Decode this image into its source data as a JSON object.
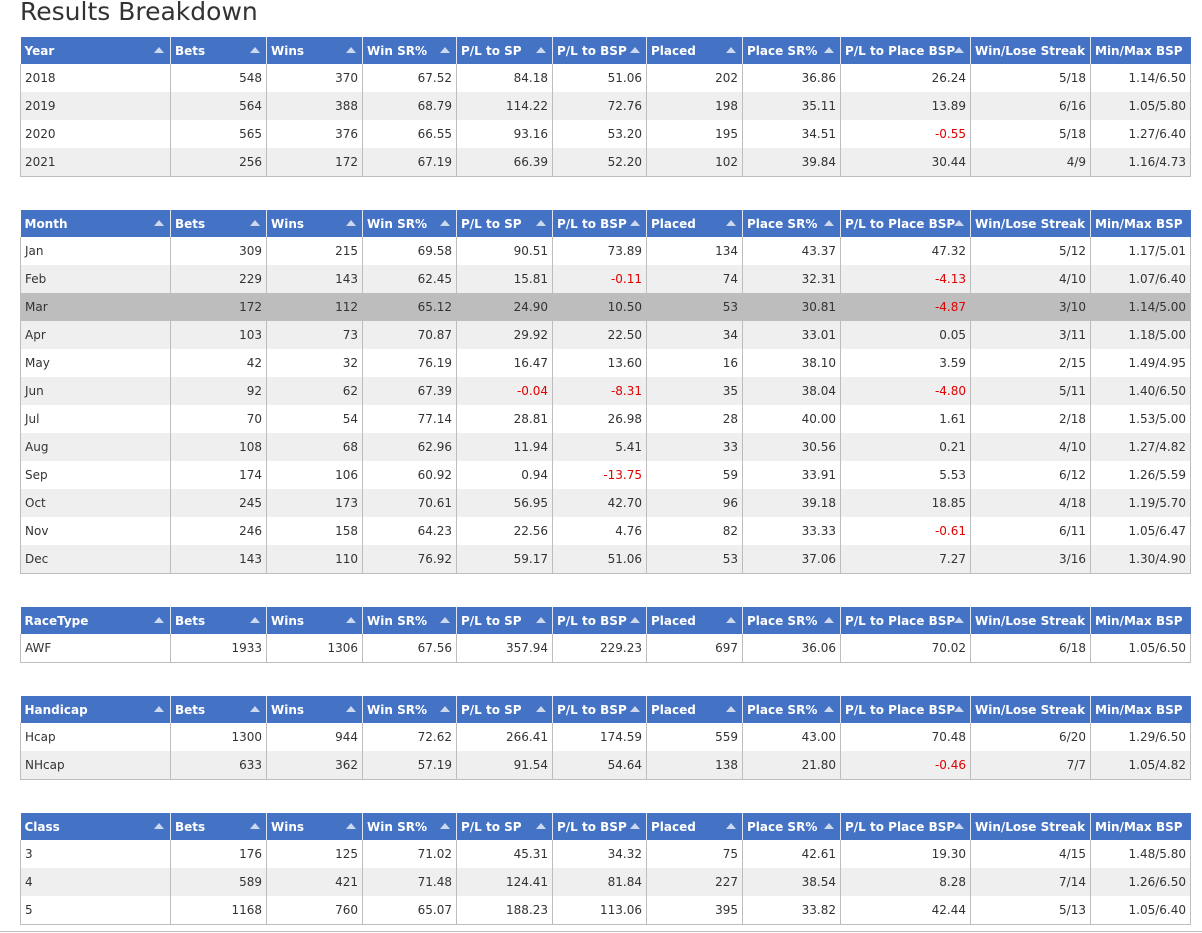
{
  "page": {
    "title": "Results Breakdown"
  },
  "colors": {
    "header_bg": "#4472c4",
    "negative": "#e00000",
    "row_alt": "#efefef",
    "row_highlight": "#bdbdbd"
  },
  "columns_common": [
    "Bets",
    "Wins",
    "Win SR%",
    "P/L to SP",
    "P/L to BSP",
    "Placed",
    "Place SR%",
    "P/L to Place BSP",
    "Win/Lose Streak",
    "Min/Max BSP"
  ],
  "tables": [
    {
      "id": "year",
      "first_col": "Year",
      "rows": [
        [
          "2018",
          "548",
          "370",
          "67.52",
          "84.18",
          "51.06",
          "202",
          "36.86",
          "26.24",
          "5/18",
          "1.14/6.50"
        ],
        [
          "2019",
          "564",
          "388",
          "68.79",
          "114.22",
          "72.76",
          "198",
          "35.11",
          "13.89",
          "6/16",
          "1.05/5.80"
        ],
        [
          "2020",
          "565",
          "376",
          "66.55",
          "93.16",
          "53.20",
          "195",
          "34.51",
          "-0.55",
          "5/18",
          "1.27/6.40"
        ],
        [
          "2021",
          "256",
          "172",
          "67.19",
          "66.39",
          "52.20",
          "102",
          "39.84",
          "30.44",
          "4/9",
          "1.16/4.73"
        ]
      ]
    },
    {
      "id": "month",
      "first_col": "Month",
      "highlight_row": 2,
      "rows": [
        [
          "Jan",
          "309",
          "215",
          "69.58",
          "90.51",
          "73.89",
          "134",
          "43.37",
          "47.32",
          "5/12",
          "1.17/5.01"
        ],
        [
          "Feb",
          "229",
          "143",
          "62.45",
          "15.81",
          "-0.11",
          "74",
          "32.31",
          "-4.13",
          "4/10",
          "1.07/6.40"
        ],
        [
          "Mar",
          "172",
          "112",
          "65.12",
          "24.90",
          "10.50",
          "53",
          "30.81",
          "-4.87",
          "3/10",
          "1.14/5.00"
        ],
        [
          "Apr",
          "103",
          "73",
          "70.87",
          "29.92",
          "22.50",
          "34",
          "33.01",
          "0.05",
          "3/11",
          "1.18/5.00"
        ],
        [
          "May",
          "42",
          "32",
          "76.19",
          "16.47",
          "13.60",
          "16",
          "38.10",
          "3.59",
          "2/15",
          "1.49/4.95"
        ],
        [
          "Jun",
          "92",
          "62",
          "67.39",
          "-0.04",
          "-8.31",
          "35",
          "38.04",
          "-4.80",
          "5/11",
          "1.40/6.50"
        ],
        [
          "Jul",
          "70",
          "54",
          "77.14",
          "28.81",
          "26.98",
          "28",
          "40.00",
          "1.61",
          "2/18",
          "1.53/5.00"
        ],
        [
          "Aug",
          "108",
          "68",
          "62.96",
          "11.94",
          "5.41",
          "33",
          "30.56",
          "0.21",
          "4/10",
          "1.27/4.82"
        ],
        [
          "Sep",
          "174",
          "106",
          "60.92",
          "0.94",
          "-13.75",
          "59",
          "33.91",
          "5.53",
          "6/12",
          "1.26/5.59"
        ],
        [
          "Oct",
          "245",
          "173",
          "70.61",
          "56.95",
          "42.70",
          "96",
          "39.18",
          "18.85",
          "4/18",
          "1.19/5.70"
        ],
        [
          "Nov",
          "246",
          "158",
          "64.23",
          "22.56",
          "4.76",
          "82",
          "33.33",
          "-0.61",
          "6/11",
          "1.05/6.47"
        ],
        [
          "Dec",
          "143",
          "110",
          "76.92",
          "59.17",
          "51.06",
          "53",
          "37.06",
          "7.27",
          "3/16",
          "1.30/4.90"
        ]
      ]
    },
    {
      "id": "racetype",
      "first_col": "RaceType",
      "rows": [
        [
          "AWF",
          "1933",
          "1306",
          "67.56",
          "357.94",
          "229.23",
          "697",
          "36.06",
          "70.02",
          "6/18",
          "1.05/6.50"
        ]
      ]
    },
    {
      "id": "handicap",
      "first_col": "Handicap",
      "rows": [
        [
          "Hcap",
          "1300",
          "944",
          "72.62",
          "266.41",
          "174.59",
          "559",
          "43.00",
          "70.48",
          "6/20",
          "1.29/6.50"
        ],
        [
          "NHcap",
          "633",
          "362",
          "57.19",
          "91.54",
          "54.64",
          "138",
          "21.80",
          "-0.46",
          "7/7",
          "1.05/4.82"
        ]
      ]
    },
    {
      "id": "class",
      "first_col": "Class",
      "rows": [
        [
          "3",
          "176",
          "125",
          "71.02",
          "45.31",
          "34.32",
          "75",
          "42.61",
          "19.30",
          "4/15",
          "1.48/5.80"
        ],
        [
          "4",
          "589",
          "421",
          "71.48",
          "124.41",
          "81.84",
          "227",
          "38.54",
          "8.28",
          "7/14",
          "1.26/6.50"
        ],
        [
          "5",
          "1168",
          "760",
          "65.07",
          "188.23",
          "113.06",
          "395",
          "33.82",
          "42.44",
          "5/13",
          "1.05/6.40"
        ]
      ]
    }
  ]
}
